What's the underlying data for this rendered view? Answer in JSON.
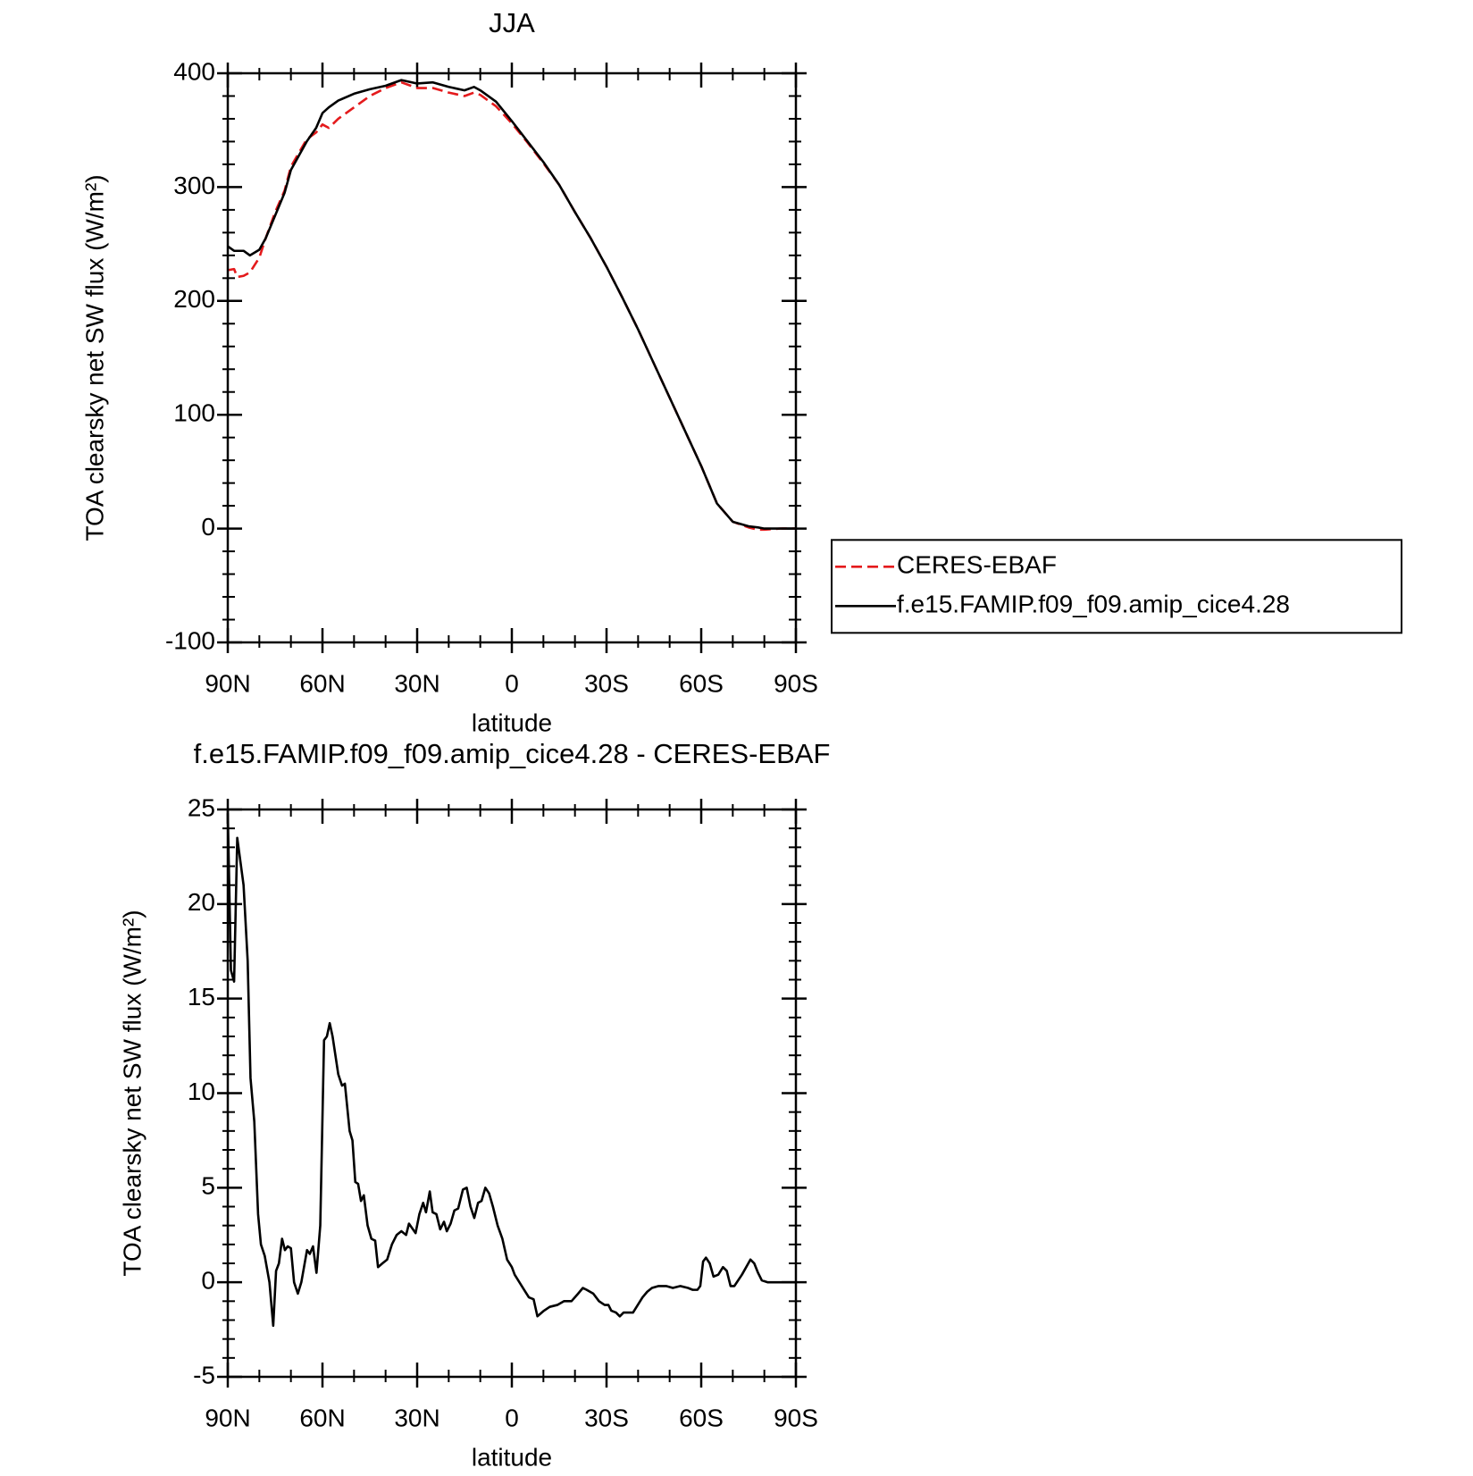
{
  "chart_data": [
    {
      "type": "line",
      "title": "JJA",
      "x_label": "latitude",
      "y_label": "TOA clearsky net SW flux (W/m²)",
      "x": [
        90,
        88,
        87,
        85,
        83,
        80,
        78,
        75,
        72,
        70,
        65,
        62,
        60,
        58,
        55,
        50,
        45,
        40,
        35,
        30,
        25,
        20,
        15,
        12,
        10,
        5,
        0,
        -5,
        -10,
        -15,
        -20,
        -25,
        -30,
        -35,
        -40,
        -45,
        -50,
        -55,
        -60,
        -65,
        -70,
        -75,
        -78,
        -80,
        -85,
        -90
      ],
      "series": [
        {
          "name": "CERES-EBAF",
          "color": "#e41a1c",
          "dashed": true,
          "values": [
            227,
            228,
            221,
            222,
            225,
            238,
            255,
            278,
            297,
            318,
            342,
            348,
            355,
            352,
            360,
            370,
            380,
            387,
            392,
            387,
            387,
            383,
            380,
            383,
            381,
            371,
            356,
            339,
            321,
            302,
            278,
            255,
            230,
            203,
            175,
            145,
            115,
            85,
            55,
            22,
            6,
            1,
            -1,
            -1,
            0,
            0
          ]
        },
        {
          "name": "f.e15.FAMIP.f09_f09.amip_cice4.28",
          "color": "#000000",
          "dashed": false,
          "values": [
            248,
            244,
            244,
            244,
            240,
            245,
            255,
            275,
            295,
            315,
            340,
            352,
            365,
            370,
            376,
            382,
            386,
            389,
            394,
            391,
            392,
            388,
            385,
            388,
            385,
            375,
            358,
            340,
            322,
            302,
            278,
            255,
            230,
            203,
            175,
            145,
            115,
            85,
            55,
            22,
            6,
            2,
            1,
            0,
            0,
            0
          ]
        }
      ],
      "xlim": [
        90,
        -90
      ],
      "xticks": [
        {
          "value": 90,
          "label": "90N"
        },
        {
          "value": 60,
          "label": "60N"
        },
        {
          "value": 30,
          "label": "30N"
        },
        0,
        {
          "value": -30,
          "label": "30S"
        },
        {
          "value": -60,
          "label": "60S"
        },
        {
          "value": -90,
          "label": "90S"
        }
      ],
      "ylim": [
        -100,
        400
      ],
      "yticks": [
        -100,
        0,
        100,
        200,
        300,
        400
      ],
      "legend": "outside-right"
    },
    {
      "type": "line",
      "title": "f.e15.FAMIP.f09_f09.amip_cice4.28 - CERES-EBAF",
      "x_label": "latitude",
      "y_label": "TOA clearsky net SW flux (W/m²)",
      "x": [
        90,
        89,
        88,
        87,
        85,
        83.7,
        82.8,
        81.6,
        80.4,
        79.5,
        78.3,
        76.8,
        75.6,
        74.7,
        73.8,
        72.8,
        71.9,
        71,
        70,
        69,
        67.8,
        66.7,
        64.9,
        64,
        63,
        61.9,
        60.7,
        59.5,
        58.6,
        57.7,
        56.8,
        55,
        53.8,
        52.9,
        51.4,
        50.5,
        49.6,
        48.7,
        47.8,
        46.9,
        45.7,
        44.5,
        43.3,
        42.4,
        41,
        39.5,
        38,
        36.5,
        35,
        33.5,
        32.6,
        30.5,
        29.3,
        28.1,
        27.2,
        26,
        25.1,
        23.9,
        22.7,
        21.5,
        20.6,
        19.4,
        18.2,
        17,
        15.5,
        14.3,
        13.1,
        11.9,
        10.7,
        9.6,
        8.4,
        7.2,
        6,
        4.5,
        3,
        1.5,
        0,
        -0.9,
        -2.4,
        -3.9,
        -5.4,
        -6.9,
        -8.1,
        -10.2,
        -12,
        -14.4,
        -16.5,
        -18.9,
        -21,
        -22.5,
        -23.7,
        -25.8,
        -27.6,
        -29.4,
        -30.6,
        -31.5,
        -33,
        -34.2,
        -35.4,
        -36.9,
        -38.4,
        -39.9,
        -41.4,
        -42.9,
        -44.4,
        -46.5,
        -48.9,
        -51,
        -53.4,
        -55.8,
        -57.3,
        -58.8,
        -59.7,
        -60.6,
        -61.5,
        -62.7,
        -63.9,
        -65.4,
        -66.9,
        -68.1,
        -69.3,
        -70.5,
        -72.9,
        -75.6,
        -76.8,
        -78,
        -79.2,
        -81,
        -90
      ],
      "series": [
        {
          "color": "#000000",
          "dashed": false,
          "values": [
            24.8,
            16.5,
            15.9,
            23.5,
            21,
            17,
            10.8,
            8.5,
            3.6,
            2,
            1.4,
            0,
            -2.3,
            0.6,
            1,
            2.3,
            1.7,
            1.9,
            1.8,
            0,
            -0.6,
            0,
            1.7,
            1.5,
            1.9,
            0.5,
            3,
            12.8,
            13,
            13.7,
            13,
            11,
            10.4,
            10.5,
            8,
            7.5,
            5.3,
            5.2,
            4.3,
            4.6,
            3,
            2.3,
            2.2,
            0.8,
            1,
            1.2,
            2,
            2.5,
            2.7,
            2.5,
            3.1,
            2.6,
            3.6,
            4.2,
            3.7,
            4.8,
            3.7,
            3.6,
            2.8,
            3.2,
            2.7,
            3.1,
            3.8,
            3.9,
            4.9,
            5,
            4,
            3.4,
            4.2,
            4.3,
            5,
            4.7,
            4,
            3,
            2.3,
            1.2,
            0.8,
            0.4,
            0,
            -0.4,
            -0.8,
            -0.9,
            -1.8,
            -1.5,
            -1.3,
            -1.2,
            -1,
            -1,
            -0.6,
            -0.3,
            -0.4,
            -0.6,
            -1,
            -1.2,
            -1.2,
            -1.5,
            -1.6,
            -1.8,
            -1.6,
            -1.6,
            -1.6,
            -1.2,
            -0.8,
            -0.5,
            -0.3,
            -0.2,
            -0.2,
            -0.3,
            -0.2,
            -0.3,
            -0.4,
            -0.4,
            -0.2,
            1.1,
            1.3,
            1,
            0.3,
            0.4,
            0.8,
            0.6,
            -0.2,
            -0.2,
            0.4,
            1.2,
            1,
            0.5,
            0.1,
            0,
            0
          ]
        }
      ],
      "xlim": [
        90,
        -90
      ],
      "xticks": [
        {
          "value": 90,
          "label": "90N"
        },
        {
          "value": 60,
          "label": "60N"
        },
        {
          "value": 30,
          "label": "30N"
        },
        0,
        {
          "value": -30,
          "label": "30S"
        },
        {
          "value": -60,
          "label": "60S"
        },
        {
          "value": -90,
          "label": "90S"
        }
      ],
      "ylim": [
        -5,
        25
      ],
      "yticks": [
        -5,
        0,
        5,
        10,
        15,
        20,
        25
      ]
    }
  ]
}
